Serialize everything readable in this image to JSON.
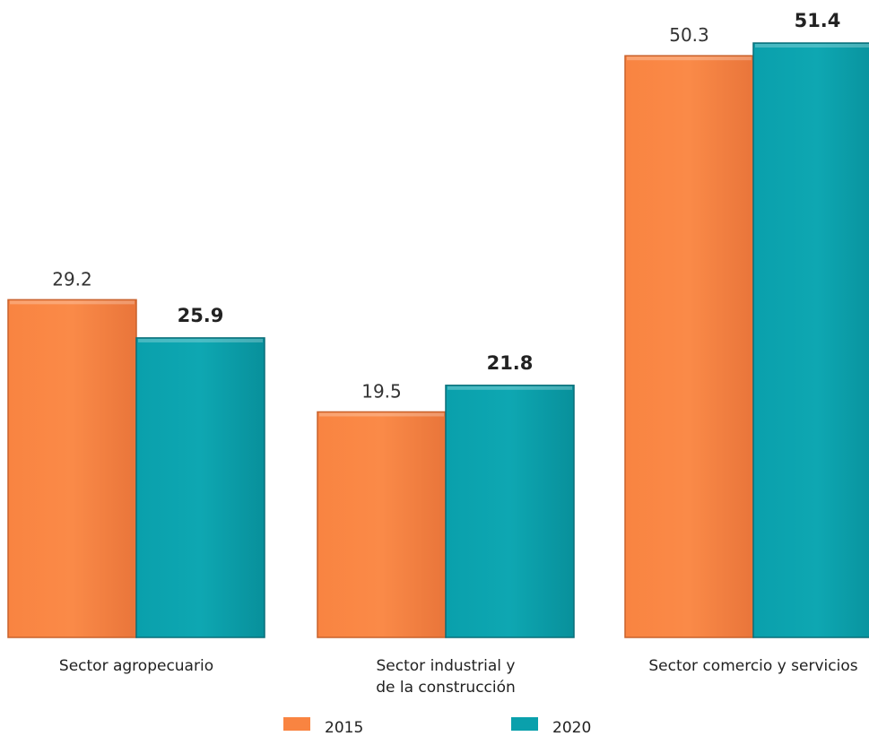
{
  "chart_data": {
    "type": "bar",
    "categories": [
      [
        "Sector agropecuario"
      ],
      [
        "Sector industrial y",
        "de la construcción"
      ],
      [
        "Sector comercio y servicios"
      ]
    ],
    "series": [
      {
        "name": "2015",
        "color": "#F98441",
        "values": [
          29.2,
          19.5,
          50.3
        ],
        "labels": [
          "29.2",
          "19.5",
          "50.3"
        ],
        "label_bold": false
      },
      {
        "name": "2020",
        "color": "#0AA0AC",
        "values": [
          25.9,
          21.8,
          51.4
        ],
        "labels": [
          "25.9",
          "21.8",
          "51.4"
        ],
        "label_bold": true
      }
    ],
    "ylim": [
      0,
      51.4
    ],
    "grid": false,
    "legend_position": "bottom"
  }
}
